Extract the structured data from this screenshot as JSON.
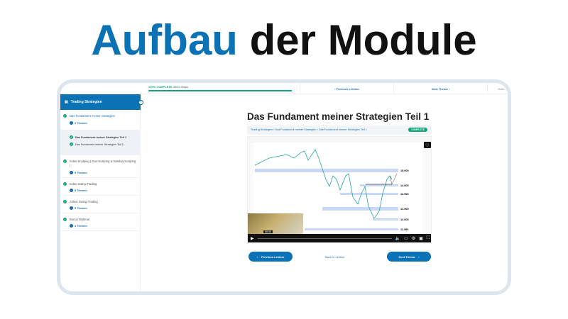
{
  "heading": {
    "accent": "Aufbau",
    "rest": " der Module"
  },
  "colors": {
    "accent": "#0b72b5",
    "success": "#14a37b"
  },
  "topbar": {
    "progress_label": "100% COMPLETE",
    "progress_steps": "33/33 Steps",
    "progress_percent": 100,
    "prev": "Previous Lektion",
    "next": "Next Thema",
    "user": "Hello,"
  },
  "sidebar": {
    "title": "Trading Strategien",
    "modules": [
      {
        "name": "Das Fundament meiner Strategien",
        "count": "2 Themen",
        "lessons": [
          "Das Fundament meiner Strategien Teil 1",
          "Das Fundament meiner Strategien Teil 2"
        ]
      },
      {
        "name": "Index-Scalping ( Dax-Scalping & Nasdaq-Scalping )",
        "count": "9 Themen"
      },
      {
        "name": "Index Swing-Trading",
        "count": "8 Themen"
      },
      {
        "name": "Aktien Swing-Trading",
        "count": "5 Themen"
      },
      {
        "name": "Bonus Material",
        "count": "4 Themen"
      }
    ]
  },
  "main": {
    "title": "Das Fundament meiner Strategien Teil 1",
    "breadcrumb": "Trading Strategien › Das Fundament meiner Strategien › Das Fundament meiner Strategien Teil 1",
    "status": "COMPLETE",
    "video": {
      "timecode": "58:36",
      "levels": [
        "15.000",
        "14.000",
        "13.500",
        "12.500",
        "12.000",
        "11.500"
      ]
    },
    "prev_button": "Previous Lektion",
    "back_link": "Back to Lektion",
    "next_button": "Next Thema"
  }
}
